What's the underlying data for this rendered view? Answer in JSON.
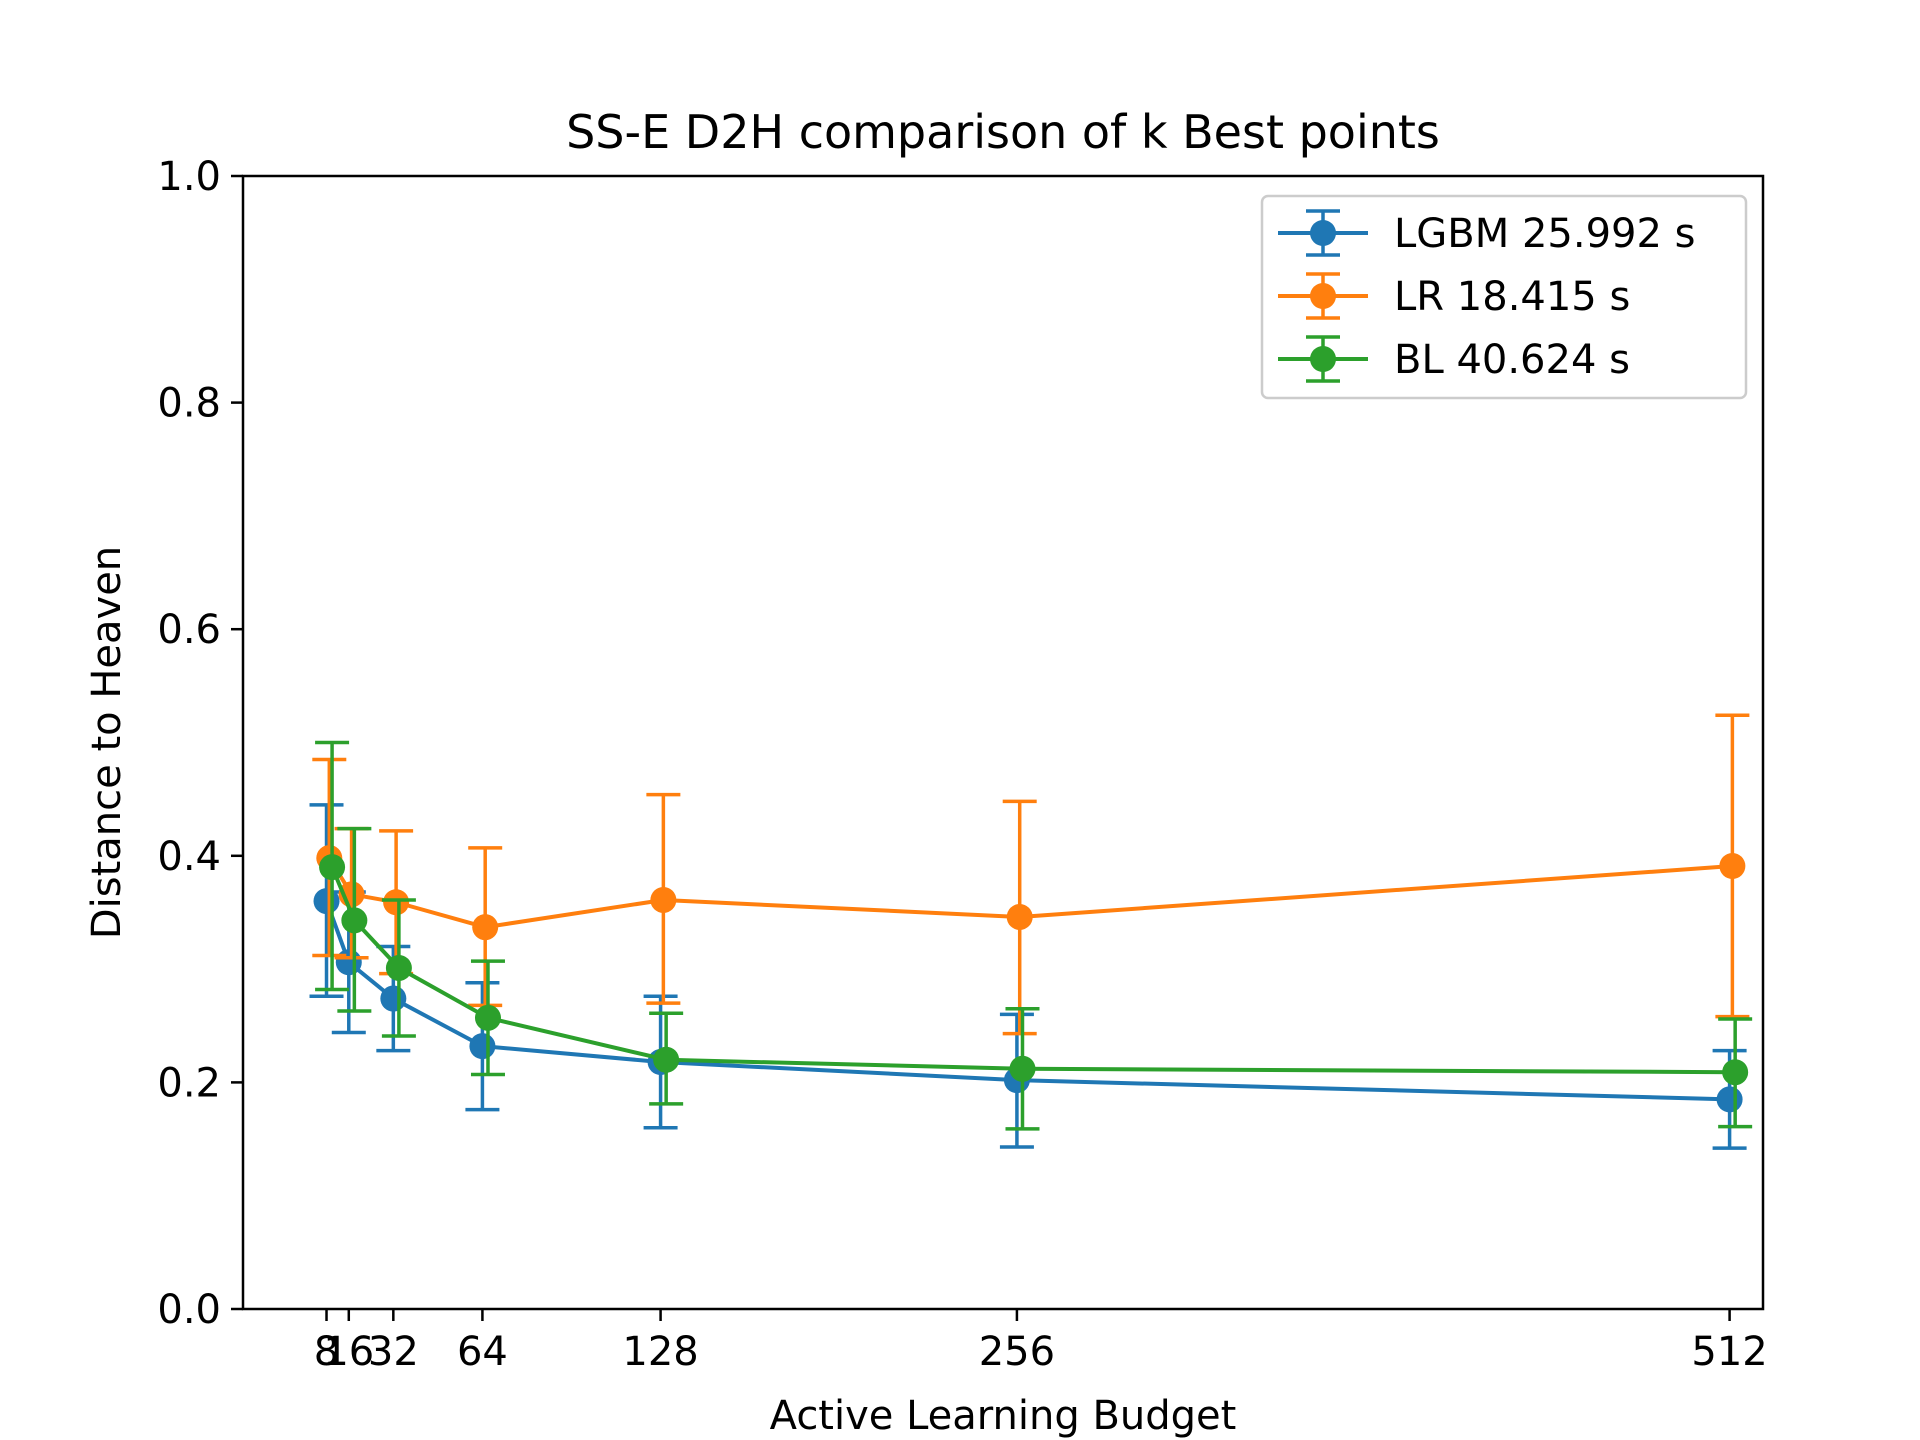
{
  "chart_data": {
    "type": "line",
    "title": "SS-E D2H comparison of k Best points",
    "xlabel": "Active Learning Budget",
    "ylabel": "Distance to Heaven",
    "xlim": [
      -22,
      524
    ],
    "ylim": [
      0.0,
      1.0
    ],
    "x_ticks": [
      8,
      16,
      32,
      64,
      128,
      256,
      512
    ],
    "y_ticks": [
      0.0,
      0.2,
      0.4,
      0.6,
      0.8,
      1.0
    ],
    "y_tick_labels": [
      "0.0",
      "0.2",
      "0.4",
      "0.6",
      "0.8",
      "1.0"
    ],
    "grid": false,
    "legend_position": "top-right",
    "series": [
      {
        "name": "LGBM 25.992 s",
        "color": "#1f77b4",
        "x": [
          8,
          16,
          32,
          64,
          128,
          256,
          512
        ],
        "y": [
          0.36,
          0.306,
          0.274,
          0.232,
          0.218,
          0.202,
          0.185
        ],
        "yerr_low": [
          0.276,
          0.244,
          0.228,
          0.176,
          0.16,
          0.143,
          0.142
        ],
        "yerr_high": [
          0.445,
          0.368,
          0.32,
          0.288,
          0.276,
          0.26,
          0.228
        ]
      },
      {
        "name": "LR 18.415 s",
        "color": "#ff7f0e",
        "x": [
          9,
          17,
          33,
          65,
          129,
          257,
          513
        ],
        "y": [
          0.398,
          0.366,
          0.359,
          0.337,
          0.361,
          0.346,
          0.391
        ],
        "yerr_low": [
          0.312,
          0.31,
          0.296,
          0.268,
          0.27,
          0.243,
          0.258
        ],
        "yerr_high": [
          0.485,
          0.424,
          0.422,
          0.407,
          0.454,
          0.448,
          0.524
        ]
      },
      {
        "name": "BL 40.624 s",
        "color": "#2ca02c",
        "x": [
          10,
          18,
          34,
          66,
          130,
          258,
          514
        ],
        "y": [
          0.39,
          0.343,
          0.301,
          0.257,
          0.22,
          0.212,
          0.209
        ],
        "yerr_low": [
          0.282,
          0.263,
          0.241,
          0.207,
          0.181,
          0.159,
          0.161
        ],
        "yerr_high": [
          0.5,
          0.424,
          0.361,
          0.307,
          0.261,
          0.265,
          0.256
        ]
      }
    ]
  }
}
